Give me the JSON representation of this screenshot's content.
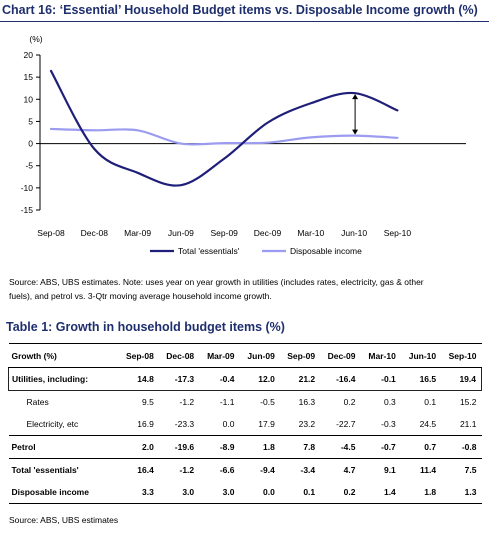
{
  "chart_title": "Chart 16: ‘Essential’ Household Budget items vs. Disposable Income growth (%)",
  "chart_data": {
    "type": "line",
    "title": "Chart 16: ‘Essential’ Household Budget items vs. Disposable Income growth (%)",
    "ylabel": "(%)",
    "xlabel": "",
    "ylim": [
      -15,
      20
    ],
    "yticks": [
      20,
      15,
      10,
      5,
      0,
      -5,
      -10,
      -15
    ],
    "categories": [
      "Sep-08",
      "Dec-08",
      "Mar-09",
      "Jun-09",
      "Sep-09",
      "Dec-09",
      "Mar-10",
      "Jun-10",
      "Sep-10"
    ],
    "legend_position": "bottom",
    "grid": false,
    "series": [
      {
        "name": "Total 'essentials'",
        "color": "#1f1f7a",
        "values": [
          16.4,
          -1.2,
          -6.6,
          -9.4,
          -3.4,
          4.7,
          9.1,
          11.4,
          7.5
        ]
      },
      {
        "name": "Disposable income",
        "color": "#9b9bf0",
        "values": [
          3.3,
          3.0,
          3.0,
          0.0,
          0.1,
          0.2,
          1.4,
          1.8,
          1.3
        ]
      }
    ],
    "annotations": [
      "double-headed arrow at Jun-10 between the two series"
    ]
  },
  "chart_source": "Source: ABS, UBS estimates. Note: uses year on year growth in utilities (includes rates, electricity, gas & other",
  "chart_source_2": "fuels), and petrol vs. 3-Qtr moving average household income growth.",
  "table_title": "Table 1: Growth in household budget items (%)",
  "table": {
    "headers": [
      "Growth (%)",
      "Sep-08",
      "Dec-08",
      "Mar-09",
      "Jun-09",
      "Sep-09",
      "Dec-09",
      "Mar-10",
      "Jun-10",
      "Sep-10"
    ],
    "rows": [
      {
        "label": "Utilities, including:",
        "values": [
          "14.8",
          "-17.3",
          "-0.4",
          "12.0",
          "21.2",
          "-16.4",
          "-0.1",
          "16.5",
          "19.4"
        ]
      },
      {
        "label": "Rates",
        "values": [
          "9.5",
          "-1.2",
          "-1.1",
          "-0.5",
          "16.3",
          "0.2",
          "0.3",
          "0.1",
          "15.2"
        ]
      },
      {
        "label": "Electricity, etc",
        "values": [
          "16.9",
          "-23.3",
          "0.0",
          "17.9",
          "23.2",
          "-22.7",
          "-0.3",
          "24.5",
          "21.1"
        ]
      },
      {
        "label": "Petrol",
        "values": [
          "2.0",
          "-19.6",
          "-8.9",
          "1.8",
          "7.8",
          "-4.5",
          "-0.7",
          "0.7",
          "-0.8"
        ]
      },
      {
        "label": "Total 'essentials'",
        "values": [
          "16.4",
          "-1.2",
          "-6.6",
          "-9.4",
          "-3.4",
          "4.7",
          "9.1",
          "11.4",
          "7.5"
        ]
      },
      {
        "label": "Disposable income",
        "values": [
          "3.3",
          "3.0",
          "3.0",
          "0.0",
          "0.1",
          "0.2",
          "1.4",
          "1.8",
          "1.3"
        ]
      }
    ]
  },
  "table_source": "Source: ABS, UBS estimates"
}
